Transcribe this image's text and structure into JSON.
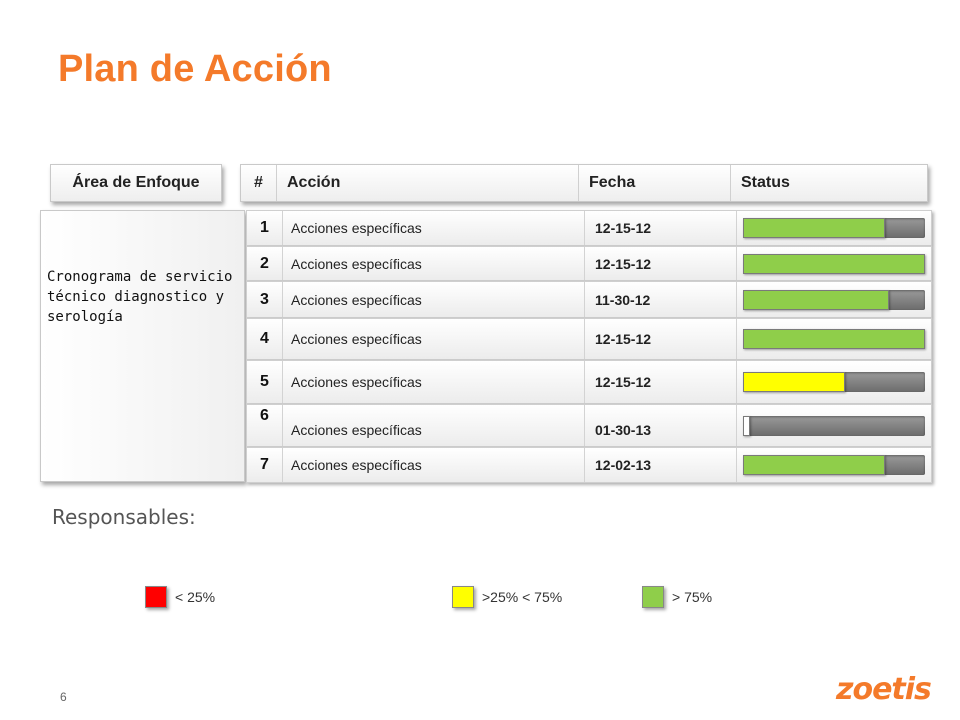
{
  "title": "Plan de Acción",
  "area_header": "Área de Enfoque",
  "area_text": "Cronograma de servicio técnico diagnostico y serología",
  "table": {
    "headers": {
      "num": "#",
      "accion": "Acción",
      "fecha": "Fecha",
      "status": "Status"
    },
    "rows": [
      {
        "num": "1",
        "accion": "Acciones específicas",
        "fecha": "12-15-12",
        "progress": 0.78,
        "status_color": "#8fce4a"
      },
      {
        "num": "2",
        "accion": "Acciones específicas",
        "fecha": "12-15-12",
        "progress": 1.0,
        "status_color": "#8fce4a"
      },
      {
        "num": "3",
        "accion": "Acciones específicas",
        "fecha": "11-30-12",
        "progress": 0.8,
        "status_color": "#8fce4a"
      },
      {
        "num": "4",
        "accion": "Acciones específicas",
        "fecha": "12-15-12",
        "progress": 1.0,
        "status_color": "#8fce4a"
      },
      {
        "num": "5",
        "accion": "Acciones específicas",
        "fecha": "12-15-12",
        "progress": 0.56,
        "status_color": "#ffff00"
      },
      {
        "num": "6",
        "accion": "Acciones específicas",
        "fecha": "01-30-13",
        "progress": 0.03,
        "status_color": "#ffffff"
      },
      {
        "num": "7",
        "accion": "Acciones específicas",
        "fecha": "12-02-13",
        "progress": 0.78,
        "status_color": "#8fce4a"
      }
    ]
  },
  "responsables_label": "Responsables:",
  "legend": [
    {
      "label": "< 25%",
      "color": "#ff0000"
    },
    {
      "label": ">25% < 75%",
      "color": "#ffff00"
    },
    {
      "label": "> 75%",
      "color": "#8fce4a"
    }
  ],
  "page_number": "6",
  "logo_text": "zoetis",
  "colors": {
    "accent": "#f47a2a"
  }
}
